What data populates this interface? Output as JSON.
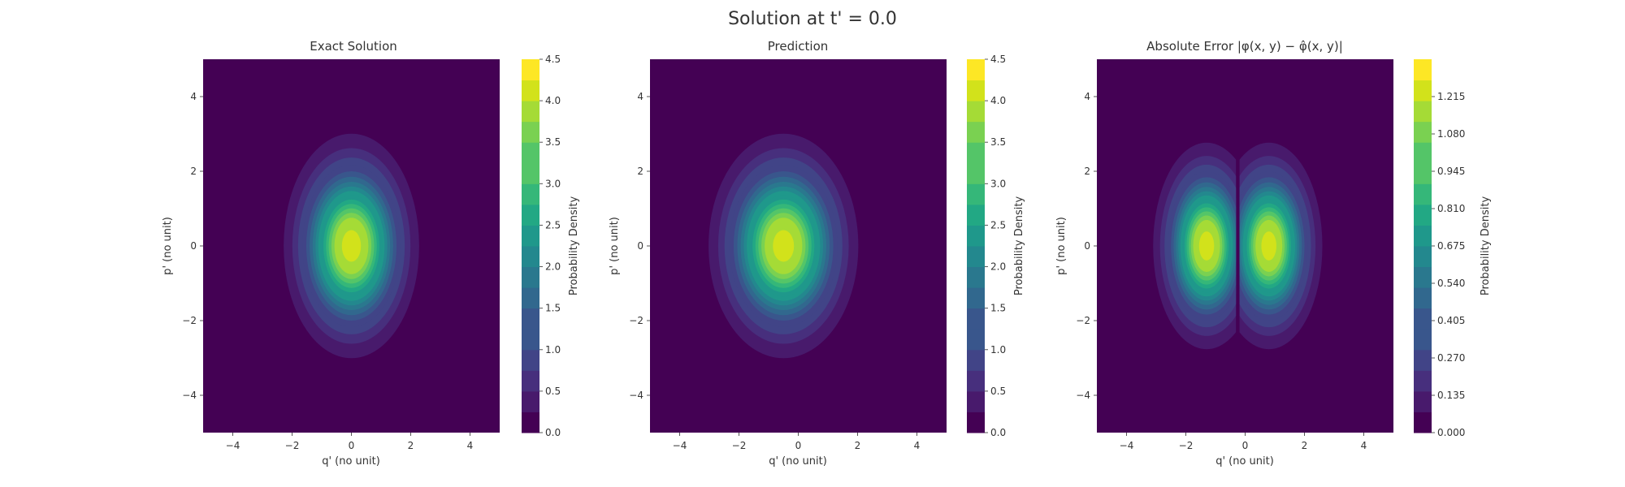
{
  "figure_title": "Solution at t' = 0.0",
  "chart_data": [
    {
      "type": "contour",
      "title": "Exact Solution",
      "xlabel": "q' (no unit)",
      "ylabel": "p' (no unit)",
      "xlim": [
        -5,
        5
      ],
      "ylim": [
        -5,
        5
      ],
      "x_ticks": [
        "−4",
        "−2",
        "0",
        "2",
        "4"
      ],
      "y_ticks": [
        "4",
        "2",
        "0",
        "−2",
        "−4"
      ],
      "field": {
        "shape": "gaussian",
        "center": [
          0,
          0
        ],
        "sigma": [
          0.95,
          1.25
        ]
      },
      "colorbar": {
        "label": "Probability Density",
        "range": [
          0,
          4.5
        ],
        "ticks": [
          "0.0",
          "0.5",
          "1.0",
          "1.5",
          "2.0",
          "2.5",
          "3.0",
          "3.5",
          "4.0",
          "4.5"
        ],
        "levels": 18
      }
    },
    {
      "type": "contour",
      "title": "Prediction",
      "xlabel": "q' (no unit)",
      "ylabel": "p' (no unit)",
      "xlim": [
        -5,
        5
      ],
      "ylim": [
        -5,
        5
      ],
      "x_ticks": [
        "−4",
        "−2",
        "0",
        "2",
        "4"
      ],
      "y_ticks": [
        "4",
        "2",
        "0",
        "−2",
        "−4"
      ],
      "field": {
        "shape": "gaussian",
        "center": [
          -0.5,
          0
        ],
        "sigma": [
          1.05,
          1.25
        ]
      },
      "colorbar": {
        "label": "Probability Density",
        "range": [
          0,
          4.5
        ],
        "ticks": [
          "0.0",
          "0.5",
          "1.0",
          "1.5",
          "2.0",
          "2.5",
          "3.0",
          "3.5",
          "4.0",
          "4.5"
        ],
        "levels": 18
      }
    },
    {
      "type": "contour",
      "title": "Absolute Error |φ(x, y) − φ̂(x, y)|",
      "xlabel": "q' (no unit)",
      "ylabel": "p' (no unit)",
      "xlim": [
        -5,
        5
      ],
      "ylim": [
        -5,
        5
      ],
      "x_ticks": [
        "−4",
        "−2",
        "0",
        "2",
        "4"
      ],
      "y_ticks": [
        "4",
        "2",
        "0",
        "−2",
        "−4"
      ],
      "field": {
        "shape": "difference",
        "center_a": [
          0,
          0
        ],
        "sigma_a": [
          0.95,
          1.25
        ],
        "center_b": [
          -0.5,
          0
        ],
        "sigma_b": [
          1.05,
          1.25
        ]
      },
      "colorbar": {
        "label": "Probability Density",
        "range": [
          0,
          1.35
        ],
        "ticks": [
          "0.000",
          "0.135",
          "0.270",
          "0.405",
          "0.540",
          "0.675",
          "0.810",
          "0.945",
          "1.080",
          "1.215"
        ],
        "levels": 18
      }
    }
  ]
}
